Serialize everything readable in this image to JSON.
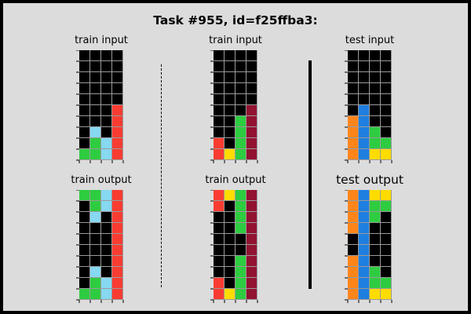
{
  "title": "Task #955, id=f25ffba3:",
  "labels": {
    "train_input": "train input",
    "train_output": "train output",
    "test_input": "test input",
    "test_output": "test output"
  },
  "palette": {
    "0": "#000000",
    "1": "#1e7fe0",
    "2": "#f93c31",
    "3": "#2ecc40",
    "4": "#ffdc00",
    "7": "#ff851b",
    "8": "#87d8f1",
    "9": "#921231"
  },
  "grids": {
    "train1_input": [
      [
        0,
        0,
        0,
        0
      ],
      [
        0,
        0,
        0,
        0
      ],
      [
        0,
        0,
        0,
        0
      ],
      [
        0,
        0,
        0,
        0
      ],
      [
        0,
        0,
        0,
        0
      ],
      [
        0,
        0,
        0,
        2
      ],
      [
        0,
        0,
        0,
        2
      ],
      [
        0,
        8,
        0,
        2
      ],
      [
        0,
        3,
        8,
        2
      ],
      [
        3,
        3,
        8,
        2
      ]
    ],
    "train1_output": [
      [
        3,
        3,
        8,
        2
      ],
      [
        0,
        3,
        8,
        2
      ],
      [
        0,
        8,
        0,
        2
      ],
      [
        0,
        0,
        0,
        2
      ],
      [
        0,
        0,
        0,
        2
      ],
      [
        0,
        0,
        0,
        2
      ],
      [
        0,
        0,
        0,
        2
      ],
      [
        0,
        8,
        0,
        2
      ],
      [
        0,
        3,
        8,
        2
      ],
      [
        3,
        3,
        8,
        2
      ]
    ],
    "train2_input": [
      [
        0,
        0,
        0,
        0
      ],
      [
        0,
        0,
        0,
        0
      ],
      [
        0,
        0,
        0,
        0
      ],
      [
        0,
        0,
        0,
        0
      ],
      [
        0,
        0,
        0,
        0
      ],
      [
        0,
        0,
        0,
        9
      ],
      [
        0,
        0,
        3,
        9
      ],
      [
        0,
        0,
        3,
        9
      ],
      [
        2,
        0,
        3,
        9
      ],
      [
        2,
        4,
        3,
        9
      ]
    ],
    "train2_output": [
      [
        2,
        4,
        3,
        9
      ],
      [
        2,
        0,
        3,
        9
      ],
      [
        0,
        0,
        3,
        9
      ],
      [
        0,
        0,
        3,
        9
      ],
      [
        0,
        0,
        0,
        9
      ],
      [
        0,
        0,
        0,
        9
      ],
      [
        0,
        0,
        3,
        9
      ],
      [
        0,
        0,
        3,
        9
      ],
      [
        2,
        0,
        3,
        9
      ],
      [
        2,
        4,
        3,
        9
      ]
    ],
    "test_input": [
      [
        0,
        0,
        0,
        0
      ],
      [
        0,
        0,
        0,
        0
      ],
      [
        0,
        0,
        0,
        0
      ],
      [
        0,
        0,
        0,
        0
      ],
      [
        0,
        0,
        0,
        0
      ],
      [
        0,
        1,
        0,
        0
      ],
      [
        7,
        1,
        0,
        0
      ],
      [
        7,
        1,
        3,
        0
      ],
      [
        7,
        1,
        3,
        3
      ],
      [
        7,
        1,
        4,
        4
      ]
    ],
    "test_output": [
      [
        7,
        1,
        4,
        4
      ],
      [
        7,
        1,
        3,
        3
      ],
      [
        7,
        1,
        3,
        0
      ],
      [
        7,
        1,
        0,
        0
      ],
      [
        0,
        1,
        0,
        0
      ],
      [
        0,
        1,
        0,
        0
      ],
      [
        7,
        1,
        0,
        0
      ],
      [
        7,
        1,
        3,
        0
      ],
      [
        7,
        1,
        3,
        3
      ],
      [
        7,
        1,
        4,
        4
      ]
    ]
  }
}
